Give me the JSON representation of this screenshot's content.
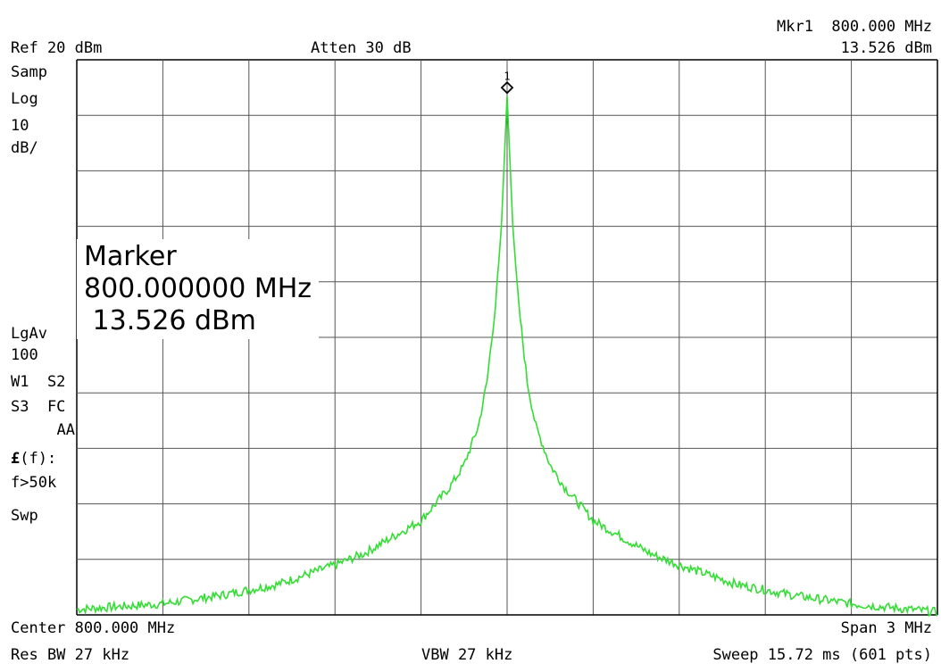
{
  "header": {
    "ref_level": "Ref 20 dBm",
    "attenuation": "Atten 30 dB",
    "marker_label": "Mkr1  800.000 MHz",
    "marker_value": "13.526 dBm"
  },
  "left_panel": {
    "detector": "Samp",
    "scale_type": "Log",
    "scale_value": "10",
    "scale_unit": "dB/",
    "avg_mode": "LgAv",
    "avg_count": "100",
    "traces_1": "W1  S2",
    "traces_2": "S3  FC",
    "traces_3": "AA",
    "func_symbol": "£",
    "func_text": "(f):",
    "func_cond": "f>50k",
    "sweep": "Swp"
  },
  "marker_box": {
    "title": "Marker",
    "frequency": "800.000000 MHz",
    "amplitude": " 13.526 dBm"
  },
  "footer": {
    "center": "Center 800.000 MHz",
    "span": "Span 3 MHz",
    "res_bw": "Res BW 27 kHz",
    "vbw": "VBW 27 kHz",
    "sweep": "Sweep 15.72 ms (601 pts)"
  },
  "chart_data": {
    "type": "line",
    "x_start_mhz": 798.5,
    "x_stop_mhz": 801.5,
    "y_top_dbm": 20,
    "y_bottom_dbm": -80,
    "divisions": 10,
    "grid": true,
    "trace_color": "#33dd33",
    "grid_color": "#555555",
    "series": [
      {
        "x": [
          798.5,
          798.8,
          799.0,
          799.2,
          799.4,
          799.5,
          799.6,
          799.7,
          799.8,
          799.85,
          799.9,
          799.93,
          799.96,
          799.98,
          800.0,
          800.02,
          800.04,
          800.07,
          800.1,
          800.15,
          800.2,
          800.3,
          800.4,
          800.5,
          800.6,
          800.8,
          801.0,
          801.2,
          801.5
        ],
        "y": [
          -79,
          -78,
          -76.5,
          -74.5,
          -71,
          -69,
          -66,
          -63,
          -57,
          -53,
          -46,
          -38,
          -24,
          -10,
          13.5,
          -10,
          -24,
          -38,
          -46,
          -53,
          -57,
          -63,
          -66,
          -69,
          -71,
          -74.5,
          -76.5,
          -78,
          -79.5
        ]
      }
    ],
    "marker": {
      "number": "1",
      "x": 800.0,
      "y": 13.526
    }
  }
}
